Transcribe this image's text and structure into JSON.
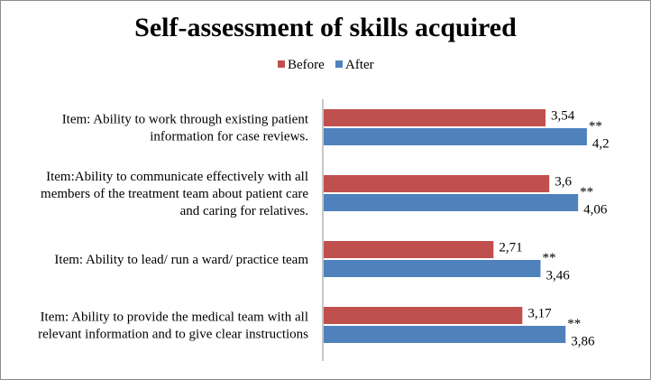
{
  "chart_data": {
    "type": "bar",
    "orientation": "horizontal",
    "title": "Self-assessment of skills acquired",
    "categories": [
      [
        "Item: Ability to work through existing patient",
        "information for case reviews."
      ],
      [
        "Item:Ability to communicate effectively with all",
        "members of the treatment team about patient care",
        "and caring for relatives."
      ],
      [
        "Item: Ability to lead/ run a ward/ practice team"
      ],
      [
        "Item: Ability to provide the medical team with all",
        "relevant information and to give clear instructions"
      ]
    ],
    "series": [
      {
        "name": "Before",
        "color": "#c0504d",
        "values": [
          3.54,
          3.6,
          2.71,
          3.17
        ],
        "labels": [
          "3,54",
          "3,6",
          "2,71",
          "3,17"
        ]
      },
      {
        "name": "After",
        "color": "#4f81bd",
        "values": [
          4.2,
          4.06,
          3.46,
          3.86
        ],
        "labels": [
          "4,2",
          "4,06",
          "3,46",
          "3,86"
        ]
      }
    ],
    "significance_marks": [
      "**",
      "**",
      "**",
      "**"
    ],
    "xlim": [
      0,
      4.65
    ],
    "legend_position": "top",
    "grid": false
  }
}
